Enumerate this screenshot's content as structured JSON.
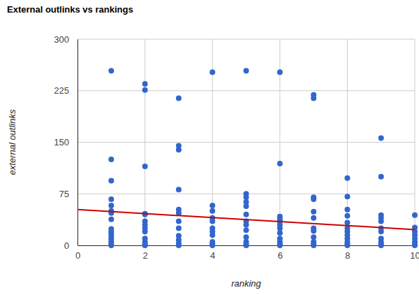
{
  "chart_data": {
    "type": "scatter",
    "title": "External outlinks vs rankings",
    "x_label": "ranking",
    "y_label": "external outlinks",
    "xlim": [
      0,
      10
    ],
    "xticks": [
      0,
      2,
      4,
      6,
      8,
      10
    ],
    "ylim": [
      0,
      300
    ],
    "yticks": [
      0,
      75,
      150,
      225,
      300
    ],
    "grid": true,
    "series": [
      {
        "type": "scatter",
        "color": "#3366cc",
        "marker": "circle",
        "x": [
          1,
          1,
          1,
          1,
          1,
          1,
          1,
          1,
          1,
          1,
          1,
          1,
          1,
          1,
          1,
          1,
          2,
          2,
          2,
          2,
          2,
          2,
          2,
          2,
          2,
          2,
          2,
          2,
          2,
          3,
          3,
          3,
          3,
          3,
          3,
          3,
          3,
          3,
          3,
          3,
          3,
          4,
          4,
          4,
          4,
          4,
          4,
          4,
          4,
          4,
          4,
          4,
          5,
          5,
          5,
          5,
          5,
          5,
          5,
          5,
          5,
          5,
          5,
          5,
          5,
          6,
          6,
          6,
          6,
          6,
          6,
          6,
          6,
          6,
          6,
          6,
          6,
          7,
          7,
          7,
          7,
          7,
          7,
          7,
          7,
          7,
          7,
          7,
          7,
          8,
          8,
          8,
          8,
          8,
          8,
          8,
          8,
          8,
          8,
          8,
          8,
          9,
          9,
          9,
          9,
          9,
          9,
          9,
          9,
          9,
          9,
          9,
          10,
          10,
          10,
          10,
          10,
          10,
          10,
          10
        ],
        "values": [
          254,
          125,
          94,
          67,
          58,
          50,
          47,
          38,
          24,
          20,
          17,
          13,
          9,
          5,
          2,
          0,
          235,
          226,
          115,
          46,
          45,
          35,
          30,
          25,
          20,
          10,
          5,
          2,
          0,
          214,
          145,
          139,
          81,
          52,
          47,
          35,
          25,
          14,
          8,
          3,
          0,
          252,
          58,
          50,
          40,
          35,
          25,
          20,
          15,
          5,
          2,
          0,
          254,
          75,
          70,
          63,
          57,
          45,
          35,
          30,
          22,
          12,
          5,
          2,
          0,
          252,
          119,
          42,
          38,
          35,
          30,
          25,
          18,
          10,
          5,
          2,
          0,
          219,
          214,
          70,
          67,
          49,
          40,
          25,
          21,
          12,
          5,
          2,
          0,
          98,
          71,
          52,
          43,
          33,
          25,
          20,
          15,
          10,
          5,
          2,
          0,
          156,
          100,
          44,
          40,
          35,
          25,
          20,
          10,
          5,
          2,
          0,
          44,
          26,
          20,
          15,
          10,
          5,
          2,
          0
        ]
      },
      {
        "type": "line",
        "color": "#cc0000",
        "line_style": "solid",
        "x": [
          0,
          10
        ],
        "values": [
          52,
          23
        ]
      }
    ]
  }
}
